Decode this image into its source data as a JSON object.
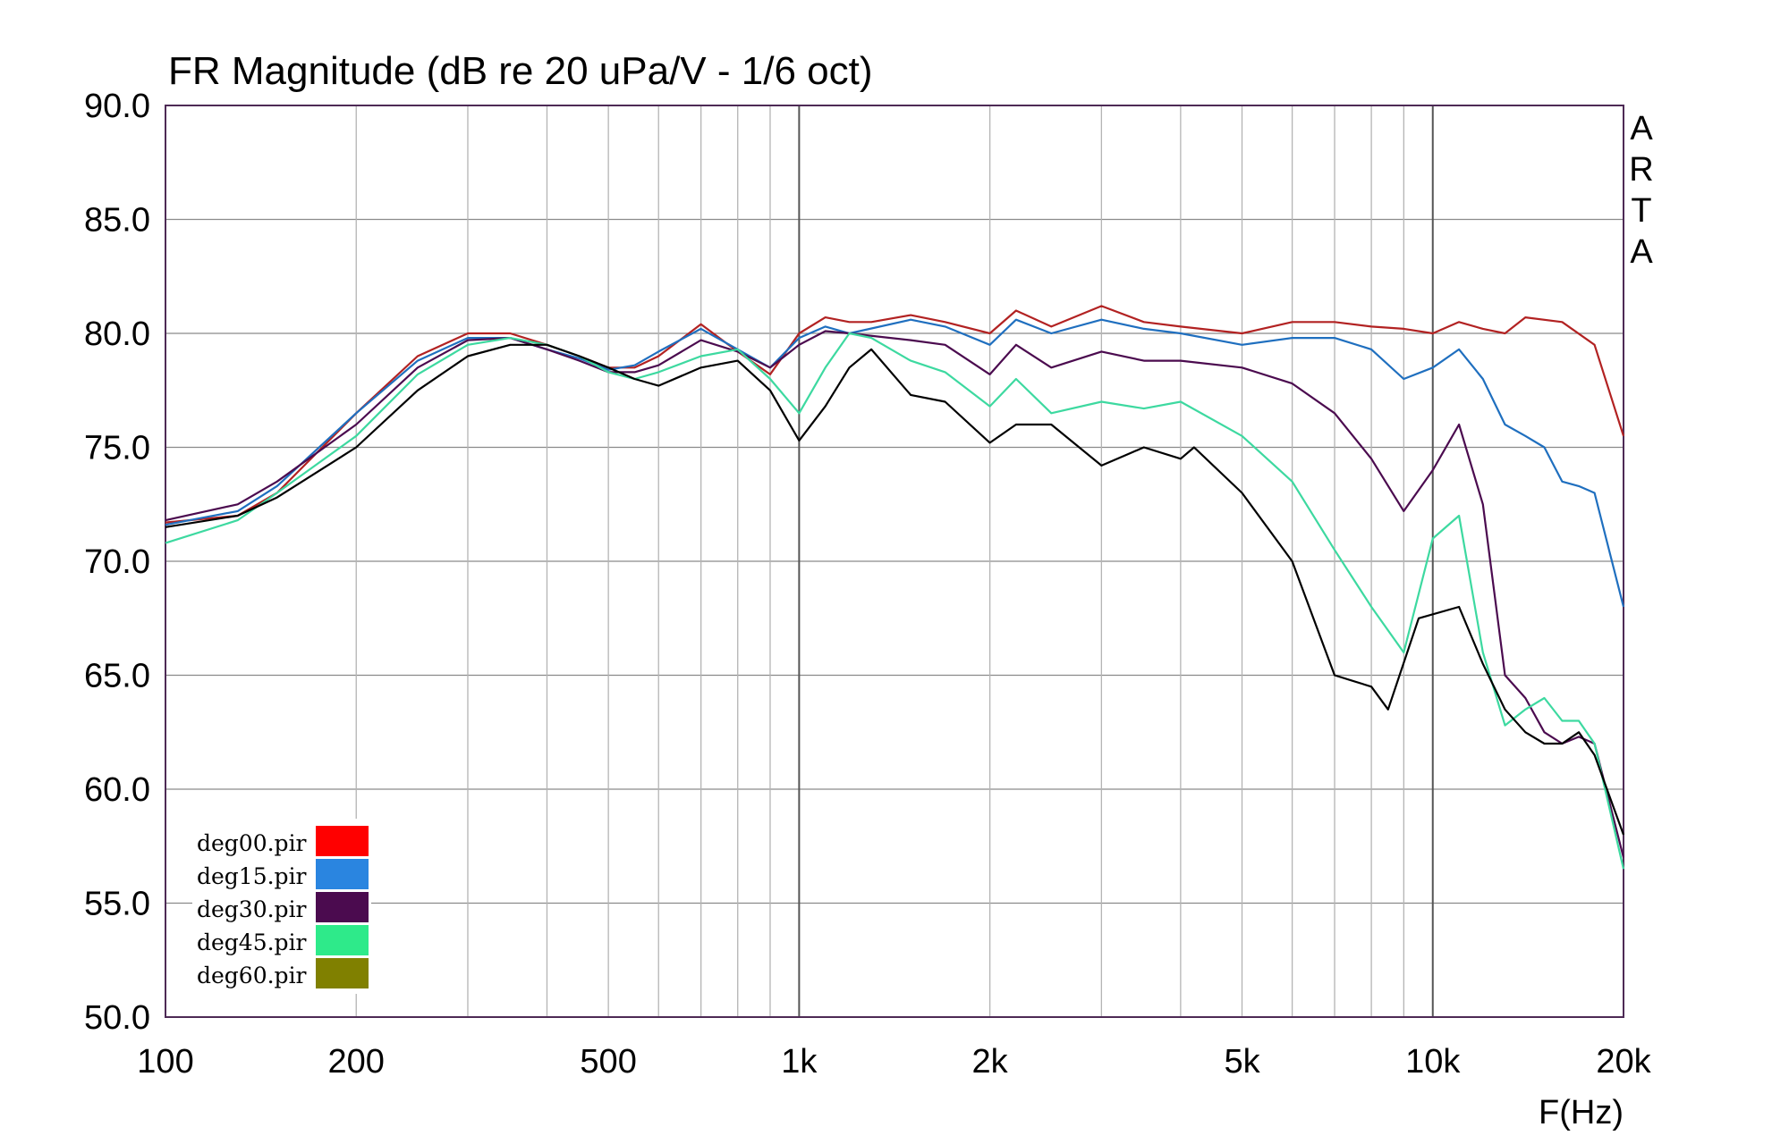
{
  "chart_data": {
    "type": "line",
    "title": "FR Magnitude (dB re 20 uPa/V - 1/6 oct)",
    "xlabel": "F(Hz)",
    "ylabel": "",
    "x_scale": "log",
    "xlim": [
      100,
      20000
    ],
    "ylim": [
      50,
      90
    ],
    "grid": true,
    "legend_position": "bottom-left",
    "watermark": "ARTA",
    "yticks": [
      "90.0",
      "85.0",
      "80.0",
      "75.0",
      "70.0",
      "65.0",
      "60.0",
      "55.0",
      "50.0"
    ],
    "xticks": [
      {
        "value": 100,
        "label": "100"
      },
      {
        "value": 200,
        "label": "200"
      },
      {
        "value": 500,
        "label": "500"
      },
      {
        "value": 1000,
        "label": "1k"
      },
      {
        "value": 2000,
        "label": "2k"
      },
      {
        "value": 5000,
        "label": "5k"
      },
      {
        "value": 10000,
        "label": "10k"
      },
      {
        "value": 20000,
        "label": "20k"
      }
    ],
    "series": [
      {
        "name": "deg00.pir",
        "legend_color": "#ff0000",
        "line_color": "#b22222",
        "points": [
          [
            100,
            71.7
          ],
          [
            130,
            72.0
          ],
          [
            150,
            73.0
          ],
          [
            200,
            76.5
          ],
          [
            250,
            79.0
          ],
          [
            300,
            80.0
          ],
          [
            350,
            80.0
          ],
          [
            400,
            79.5
          ],
          [
            450,
            79.0
          ],
          [
            500,
            78.5
          ],
          [
            550,
            78.5
          ],
          [
            600,
            79.0
          ],
          [
            700,
            80.4
          ],
          [
            800,
            79.2
          ],
          [
            900,
            78.2
          ],
          [
            1000,
            80.0
          ],
          [
            1100,
            80.7
          ],
          [
            1200,
            80.5
          ],
          [
            1300,
            80.5
          ],
          [
            1500,
            80.8
          ],
          [
            1700,
            80.5
          ],
          [
            2000,
            80.0
          ],
          [
            2200,
            81.0
          ],
          [
            2500,
            80.3
          ],
          [
            3000,
            81.2
          ],
          [
            3500,
            80.5
          ],
          [
            4000,
            80.3
          ],
          [
            5000,
            80.0
          ],
          [
            6000,
            80.5
          ],
          [
            7000,
            80.5
          ],
          [
            8000,
            80.3
          ],
          [
            9000,
            80.2
          ],
          [
            10000,
            80.0
          ],
          [
            11000,
            80.5
          ],
          [
            12000,
            80.2
          ],
          [
            13000,
            80.0
          ],
          [
            14000,
            80.7
          ],
          [
            16000,
            80.5
          ],
          [
            18000,
            79.5
          ],
          [
            20000,
            75.5
          ]
        ]
      },
      {
        "name": "deg15.pir",
        "legend_color": "#2a85e0",
        "line_color": "#1f6fbf",
        "points": [
          [
            100,
            71.6
          ],
          [
            130,
            72.2
          ],
          [
            150,
            73.3
          ],
          [
            200,
            76.5
          ],
          [
            250,
            78.8
          ],
          [
            300,
            79.8
          ],
          [
            350,
            79.8
          ],
          [
            400,
            79.3
          ],
          [
            450,
            78.9
          ],
          [
            500,
            78.4
          ],
          [
            550,
            78.6
          ],
          [
            600,
            79.2
          ],
          [
            700,
            80.2
          ],
          [
            800,
            79.3
          ],
          [
            900,
            78.5
          ],
          [
            1000,
            79.8
          ],
          [
            1100,
            80.3
          ],
          [
            1200,
            80.0
          ],
          [
            1500,
            80.6
          ],
          [
            1700,
            80.3
          ],
          [
            2000,
            79.5
          ],
          [
            2200,
            80.6
          ],
          [
            2500,
            80.0
          ],
          [
            3000,
            80.6
          ],
          [
            3500,
            80.2
          ],
          [
            4000,
            80.0
          ],
          [
            5000,
            79.5
          ],
          [
            6000,
            79.8
          ],
          [
            7000,
            79.8
          ],
          [
            8000,
            79.3
          ],
          [
            9000,
            78.0
          ],
          [
            10000,
            78.5
          ],
          [
            11000,
            79.3
          ],
          [
            12000,
            78.0
          ],
          [
            13000,
            76.0
          ],
          [
            14000,
            75.5
          ],
          [
            15000,
            75.0
          ],
          [
            16000,
            73.5
          ],
          [
            17000,
            73.3
          ],
          [
            18000,
            73.0
          ],
          [
            20000,
            68.0
          ]
        ]
      },
      {
        "name": "deg30.pir",
        "legend_color": "#4b0b4f",
        "line_color": "#4b0b4f",
        "points": [
          [
            100,
            71.8
          ],
          [
            130,
            72.5
          ],
          [
            150,
            73.5
          ],
          [
            200,
            76.0
          ],
          [
            250,
            78.5
          ],
          [
            300,
            79.7
          ],
          [
            350,
            79.8
          ],
          [
            400,
            79.3
          ],
          [
            450,
            78.8
          ],
          [
            500,
            78.3
          ],
          [
            550,
            78.3
          ],
          [
            600,
            78.6
          ],
          [
            700,
            79.7
          ],
          [
            800,
            79.2
          ],
          [
            900,
            78.5
          ],
          [
            1000,
            79.5
          ],
          [
            1100,
            80.1
          ],
          [
            1200,
            80.0
          ],
          [
            1500,
            79.7
          ],
          [
            1700,
            79.5
          ],
          [
            2000,
            78.2
          ],
          [
            2200,
            79.5
          ],
          [
            2500,
            78.5
          ],
          [
            3000,
            79.2
          ],
          [
            3500,
            78.8
          ],
          [
            4000,
            78.8
          ],
          [
            5000,
            78.5
          ],
          [
            6000,
            77.8
          ],
          [
            7000,
            76.5
          ],
          [
            8000,
            74.5
          ],
          [
            9000,
            72.2
          ],
          [
            10000,
            74.0
          ],
          [
            11000,
            76.0
          ],
          [
            12000,
            72.5
          ],
          [
            13000,
            65.0
          ],
          [
            14000,
            64.0
          ],
          [
            15000,
            62.5
          ],
          [
            16000,
            62.0
          ],
          [
            17000,
            62.3
          ],
          [
            18000,
            62.0
          ],
          [
            20000,
            57.0
          ]
        ]
      },
      {
        "name": "deg45.pir",
        "legend_color": "#2eea8a",
        "line_color": "#3dd9a0",
        "points": [
          [
            100,
            70.8
          ],
          [
            130,
            71.8
          ],
          [
            150,
            73.0
          ],
          [
            200,
            75.5
          ],
          [
            250,
            78.2
          ],
          [
            300,
            79.5
          ],
          [
            350,
            79.8
          ],
          [
            400,
            79.5
          ],
          [
            450,
            79.0
          ],
          [
            500,
            78.3
          ],
          [
            550,
            78.0
          ],
          [
            600,
            78.3
          ],
          [
            700,
            79.0
          ],
          [
            800,
            79.3
          ],
          [
            900,
            78.0
          ],
          [
            1000,
            76.5
          ],
          [
            1100,
            78.5
          ],
          [
            1200,
            80.0
          ],
          [
            1300,
            79.8
          ],
          [
            1500,
            78.8
          ],
          [
            1700,
            78.3
          ],
          [
            2000,
            76.8
          ],
          [
            2200,
            78.0
          ],
          [
            2500,
            76.5
          ],
          [
            3000,
            77.0
          ],
          [
            3500,
            76.7
          ],
          [
            4000,
            77.0
          ],
          [
            5000,
            75.5
          ],
          [
            6000,
            73.5
          ],
          [
            7000,
            70.5
          ],
          [
            8000,
            68.0
          ],
          [
            9000,
            66.0
          ],
          [
            10000,
            71.0
          ],
          [
            11000,
            72.0
          ],
          [
            12000,
            66.0
          ],
          [
            13000,
            62.8
          ],
          [
            14000,
            63.5
          ],
          [
            15000,
            64.0
          ],
          [
            16000,
            63.0
          ],
          [
            17000,
            63.0
          ],
          [
            18000,
            62.0
          ],
          [
            20000,
            56.5
          ]
        ]
      },
      {
        "name": "deg60.pir",
        "legend_color": "#808000",
        "line_color": "#000000",
        "points": [
          [
            100,
            71.5
          ],
          [
            130,
            72.0
          ],
          [
            150,
            72.8
          ],
          [
            200,
            75.0
          ],
          [
            250,
            77.5
          ],
          [
            300,
            79.0
          ],
          [
            350,
            79.5
          ],
          [
            400,
            79.5
          ],
          [
            450,
            79.0
          ],
          [
            500,
            78.5
          ],
          [
            550,
            78.0
          ],
          [
            600,
            77.7
          ],
          [
            700,
            78.5
          ],
          [
            800,
            78.8
          ],
          [
            900,
            77.5
          ],
          [
            1000,
            75.3
          ],
          [
            1100,
            76.8
          ],
          [
            1200,
            78.5
          ],
          [
            1300,
            79.3
          ],
          [
            1500,
            77.3
          ],
          [
            1700,
            77.0
          ],
          [
            2000,
            75.2
          ],
          [
            2200,
            76.0
          ],
          [
            2500,
            76.0
          ],
          [
            3000,
            74.2
          ],
          [
            3500,
            75.0
          ],
          [
            4000,
            74.5
          ],
          [
            4200,
            75.0
          ],
          [
            5000,
            73.0
          ],
          [
            6000,
            70.0
          ],
          [
            7000,
            65.0
          ],
          [
            8000,
            64.5
          ],
          [
            8500,
            63.5
          ],
          [
            9500,
            67.5
          ],
          [
            11000,
            68.0
          ],
          [
            12000,
            65.5
          ],
          [
            13000,
            63.5
          ],
          [
            14000,
            62.5
          ],
          [
            15000,
            62.0
          ],
          [
            16000,
            62.0
          ],
          [
            17000,
            62.5
          ],
          [
            18000,
            61.5
          ],
          [
            20000,
            58.0
          ]
        ]
      }
    ]
  }
}
